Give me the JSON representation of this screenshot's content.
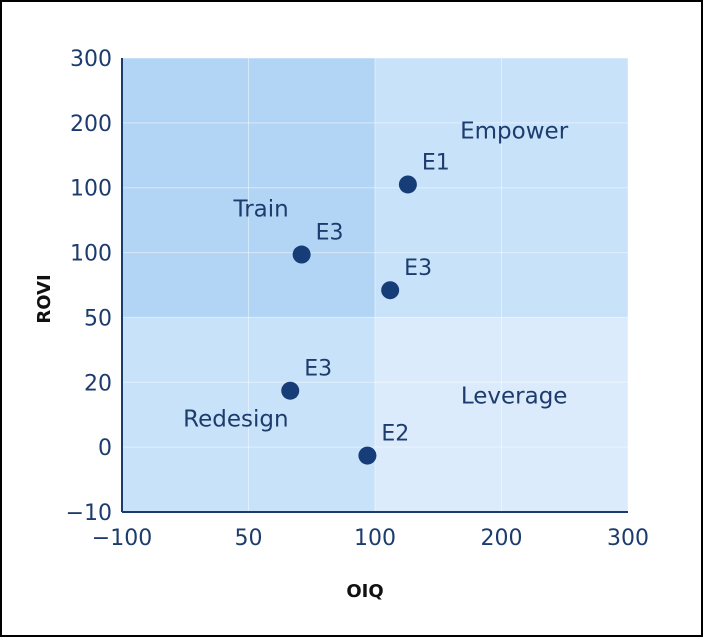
{
  "chart_data": {
    "type": "scatter",
    "title": "",
    "xlabel": "OIQ",
    "ylabel": "ROVI",
    "x_ticks": [
      "−100",
      "50",
      "100",
      "200",
      "300"
    ],
    "y_ticks": [
      "300",
      "200",
      "100",
      "100",
      "50",
      "20",
      "0",
      "−10"
    ],
    "xlim": [
      0,
      4
    ],
    "ylim": [
      0,
      7
    ],
    "quadrants": [
      {
        "name": "Train",
        "color": "#b3d5f5"
      },
      {
        "name": "Empower",
        "color": "#c8e2fa"
      },
      {
        "name": "Redesign",
        "color": "#c8e2fa"
      },
      {
        "name": "Leverage",
        "color": "#dbebfc"
      }
    ],
    "x_split": 2.0,
    "y_split": 3.0,
    "points": [
      {
        "label": "E1",
        "x": 2.26,
        "y": 5.05
      },
      {
        "label": "E3",
        "x": 1.42,
        "y": 3.97
      },
      {
        "label": "E3",
        "x": 2.12,
        "y": 3.42
      },
      {
        "label": "E3",
        "x": 1.33,
        "y": 1.87
      },
      {
        "label": "E2",
        "x": 1.94,
        "y": 0.87
      }
    ],
    "grid": true,
    "point_color": "#163d78",
    "axis_color": "#1d3c6e"
  }
}
